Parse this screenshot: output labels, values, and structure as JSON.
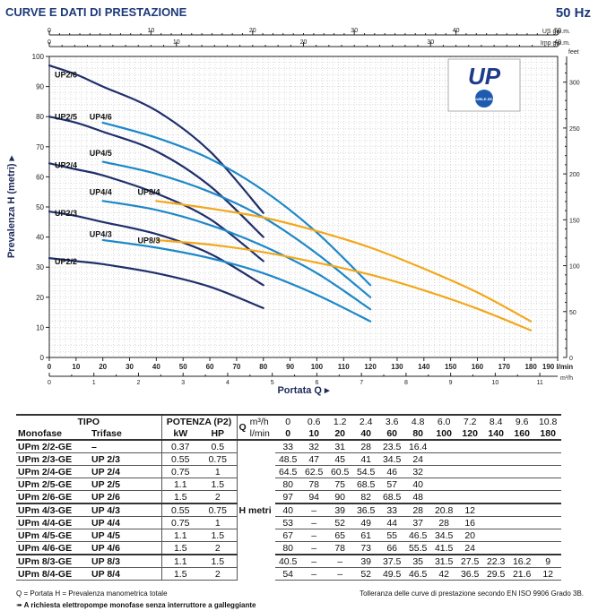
{
  "header": {
    "title": "CURVE E DATI DI PRESTAZIONE",
    "frequency": "50 Hz"
  },
  "colors": {
    "dark": "#1f2f6b",
    "mid": "#1e88c7",
    "orange": "#f2a81d",
    "grid": "#b8b8b8",
    "axis": "#222222"
  },
  "chart_data": {
    "type": "line",
    "ylabel": "Prevalenza H (metri)",
    "xlabel": "Portata Q",
    "x_unit": "l/min",
    "xlim": [
      0,
      190
    ],
    "ylim": [
      0,
      100
    ],
    "y_ticks": [
      0,
      10,
      20,
      30,
      40,
      50,
      60,
      70,
      80,
      90,
      100
    ],
    "x_ticks": [
      0,
      10,
      20,
      30,
      40,
      50,
      60,
      70,
      80,
      90,
      100,
      110,
      120,
      130,
      140,
      150,
      160,
      170,
      180,
      190
    ],
    "x_tick_labels": [
      "0",
      "10",
      "20",
      "30",
      "40",
      "50",
      "60",
      "70",
      "80",
      "90",
      "100",
      "110",
      "120",
      "130",
      "140",
      "150",
      "160",
      "170",
      "180",
      "190 l/min"
    ],
    "top_axis_1": {
      "label": "US g.p.m.",
      "max_value": 50,
      "ticks": [
        "0",
        "10",
        "20",
        "30",
        "40",
        "50"
      ]
    },
    "top_axis_2": {
      "label": "Imp g.p.m.",
      "max_value": 40,
      "ticks": [
        "0",
        "10",
        "20",
        "30",
        "40"
      ]
    },
    "bottom_axis_m3h": {
      "label": "m³/h",
      "max_value": 11.4,
      "ticks": [
        "0",
        "1",
        "2",
        "3",
        "4",
        "5",
        "6",
        "7",
        "8",
        "9",
        "10",
        "11"
      ]
    },
    "right_axis_feet": {
      "label": "feet",
      "max_value": 328,
      "ticks": [
        "0",
        "50",
        "100",
        "150",
        "200",
        "250",
        "300"
      ]
    },
    "series": [
      {
        "name": "UP2/2",
        "color": "dark",
        "x": [
          0,
          10,
          20,
          40,
          60,
          80
        ],
        "y": [
          33,
          32,
          31,
          28,
          23.5,
          16.4
        ]
      },
      {
        "name": "UP2/3",
        "color": "dark",
        "x": [
          0,
          10,
          20,
          40,
          60,
          80
        ],
        "y": [
          48.5,
          47,
          45,
          41,
          34.5,
          24
        ]
      },
      {
        "name": "UP2/4",
        "color": "dark",
        "x": [
          0,
          10,
          20,
          40,
          60,
          80
        ],
        "y": [
          64.5,
          62.5,
          60.5,
          54.5,
          46,
          32
        ]
      },
      {
        "name": "UP2/5",
        "color": "dark",
        "x": [
          0,
          10,
          20,
          40,
          60,
          80
        ],
        "y": [
          80,
          78,
          75,
          68.5,
          57,
          40
        ]
      },
      {
        "name": "UP2/6",
        "color": "dark",
        "x": [
          0,
          10,
          20,
          40,
          60,
          80
        ],
        "y": [
          97,
          94,
          90,
          82,
          68.5,
          48
        ]
      },
      {
        "name": "UP4/3",
        "color": "mid",
        "x": [
          20,
          40,
          60,
          80,
          100,
          120
        ],
        "y": [
          39,
          36.5,
          33,
          28,
          20.8,
          12
        ]
      },
      {
        "name": "UP4/4",
        "color": "mid",
        "x": [
          20,
          40,
          60,
          80,
          100,
          120
        ],
        "y": [
          52,
          49,
          44,
          37,
          28,
          16
        ]
      },
      {
        "name": "UP4/5",
        "color": "mid",
        "x": [
          20,
          40,
          60,
          80,
          100,
          120
        ],
        "y": [
          65,
          61,
          55,
          46.5,
          34.5,
          20
        ]
      },
      {
        "name": "UP4/6",
        "color": "mid",
        "x": [
          20,
          40,
          60,
          80,
          100,
          120
        ],
        "y": [
          78,
          73,
          66,
          55.5,
          41.5,
          24
        ]
      },
      {
        "name": "UP8/3",
        "color": "orange",
        "x": [
          40,
          60,
          80,
          100,
          120,
          140,
          160,
          180
        ],
        "y": [
          39,
          37.5,
          35,
          31.5,
          27.5,
          22.3,
          16.2,
          9
        ]
      },
      {
        "name": "UP8/4",
        "color": "orange",
        "x": [
          40,
          60,
          80,
          100,
          120,
          140,
          160,
          180
        ],
        "y": [
          52,
          49.5,
          46.5,
          42,
          36.5,
          29.5,
          21.6,
          12
        ]
      }
    ],
    "curve_labels": [
      {
        "text": "UP2/6",
        "x": 2,
        "y": 93
      },
      {
        "text": "UP2/5",
        "x": 2,
        "y": 79
      },
      {
        "text": "UP4/6",
        "x": 15,
        "y": 79
      },
      {
        "text": "UP4/5",
        "x": 15,
        "y": 67
      },
      {
        "text": "UP2/4",
        "x": 2,
        "y": 63
      },
      {
        "text": "UP4/4",
        "x": 15,
        "y": 54
      },
      {
        "text": "UP8/4",
        "x": 33,
        "y": 54
      },
      {
        "text": "UP2/3",
        "x": 2,
        "y": 47
      },
      {
        "text": "UP4/3",
        "x": 15,
        "y": 40
      },
      {
        "text": "UP8/3",
        "x": 33,
        "y": 38
      },
      {
        "text": "UP2/2",
        "x": 2,
        "y": 31
      }
    ]
  },
  "logo": {
    "text": "UP",
    "badge": "DOUBLE-SEAL"
  },
  "table": {
    "h_tipo": "TIPO",
    "h_potenza": "POTENZA (P2)",
    "h_q": "Q",
    "h_m3h": "m³/h",
    "h_lmin": "l/min",
    "h_monofase": "Monofase",
    "h_trifase": "Trifase",
    "h_kw": "kW",
    "h_hp": "HP",
    "h_metri": "H metri",
    "m3h_values": [
      "0",
      "0.6",
      "1.2",
      "2.4",
      "3.6",
      "4.8",
      "6.0",
      "7.2",
      "8.4",
      "9.6",
      "10.8"
    ],
    "lmin_values": [
      "0",
      "10",
      "20",
      "40",
      "60",
      "80",
      "100",
      "120",
      "140",
      "160",
      "180"
    ],
    "rows": [
      {
        "mono": "UPm 2/2-GE",
        "tri": "–",
        "kw": "0.37",
        "hp": "0.5",
        "h": [
          "33",
          "32",
          "31",
          "28",
          "23.5",
          "16.4",
          "",
          "",
          "",
          "",
          ""
        ]
      },
      {
        "mono": "UPm 2/3-GE",
        "tri": "UP 2/3",
        "kw": "0.55",
        "hp": "0.75",
        "h": [
          "48.5",
          "47",
          "45",
          "41",
          "34.5",
          "24",
          "",
          "",
          "",
          "",
          ""
        ]
      },
      {
        "mono": "UPm 2/4-GE",
        "tri": "UP 2/4",
        "kw": "0.75",
        "hp": "1",
        "h": [
          "64.5",
          "62.5",
          "60.5",
          "54.5",
          "46",
          "32",
          "",
          "",
          "",
          "",
          ""
        ]
      },
      {
        "mono": "UPm 2/5-GE",
        "tri": "UP 2/5",
        "kw": "1.1",
        "hp": "1.5",
        "h": [
          "80",
          "78",
          "75",
          "68.5",
          "57",
          "40",
          "",
          "",
          "",
          "",
          ""
        ]
      },
      {
        "mono": "UPm 2/6-GE",
        "tri": "UP 2/6",
        "kw": "1.5",
        "hp": "2",
        "h": [
          "97",
          "94",
          "90",
          "82",
          "68.5",
          "48",
          "",
          "",
          "",
          "",
          ""
        ]
      },
      {
        "mono": "UPm 4/3-GE",
        "tri": "UP 4/3",
        "kw": "0.55",
        "hp": "0.75",
        "h": [
          "40",
          "–",
          "39",
          "36.5",
          "33",
          "28",
          "20.8",
          "12",
          "",
          "",
          ""
        ]
      },
      {
        "mono": "UPm 4/4-GE",
        "tri": "UP 4/4",
        "kw": "0.75",
        "hp": "1",
        "h": [
          "53",
          "–",
          "52",
          "49",
          "44",
          "37",
          "28",
          "16",
          "",
          "",
          ""
        ]
      },
      {
        "mono": "UPm 4/5-GE",
        "tri": "UP 4/5",
        "kw": "1.1",
        "hp": "1.5",
        "h": [
          "67",
          "–",
          "65",
          "61",
          "55",
          "46.5",
          "34.5",
          "20",
          "",
          "",
          ""
        ]
      },
      {
        "mono": "UPm 4/6-GE",
        "tri": "UP 4/6",
        "kw": "1.5",
        "hp": "2",
        "h": [
          "80",
          "–",
          "78",
          "73",
          "66",
          "55.5",
          "41.5",
          "24",
          "",
          "",
          ""
        ]
      },
      {
        "mono": "UPm 8/3-GE",
        "tri": "UP 8/3",
        "kw": "1.1",
        "hp": "1.5",
        "h": [
          "40.5",
          "–",
          "–",
          "39",
          "37.5",
          "35",
          "31.5",
          "27.5",
          "22.3",
          "16.2",
          "9"
        ]
      },
      {
        "mono": "UPm 8/4-GE",
        "tri": "UP 8/4",
        "kw": "1.5",
        "hp": "2",
        "h": [
          "54",
          "–",
          "–",
          "52",
          "49.5",
          "46.5",
          "42",
          "36.5",
          "29.5",
          "21.6",
          "12"
        ]
      }
    ]
  },
  "footer": {
    "legend": "Q = Portata   H = Prevalenza manometrica totale",
    "tolerance": "Tolleranza delle curve di prestazione secondo EN ISO 9906 Grado 3B.",
    "note": "➠ A richiesta elettropompe monofase senza interruttore a galleggiante"
  }
}
